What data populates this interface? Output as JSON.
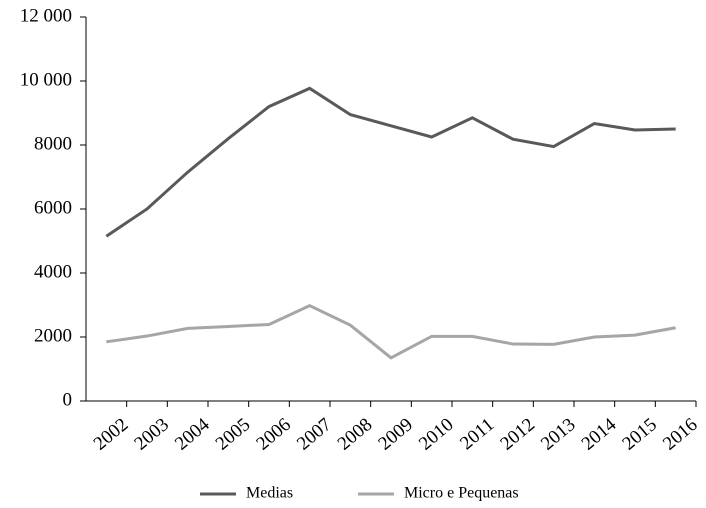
{
  "chart_data": {
    "type": "line",
    "categories": [
      "2002",
      "2003",
      "2004",
      "2005",
      "2006",
      "2007",
      "2008",
      "2009",
      "2010",
      "2011",
      "2012",
      "2013",
      "2014",
      "2015",
      "2016"
    ],
    "series": [
      {
        "name": "Medias",
        "color": "#595959",
        "values": [
          5150,
          6000,
          7150,
          8200,
          9200,
          9770,
          8950,
          8600,
          8250,
          8850,
          8180,
          7950,
          8670,
          8470,
          8500
        ]
      },
      {
        "name": "Micro e Pequenas",
        "color": "#a6a6a6",
        "values": [
          1850,
          2030,
          2270,
          2330,
          2390,
          2980,
          2370,
          1350,
          2020,
          2020,
          1780,
          1770,
          2000,
          2060,
          2290
        ]
      }
    ],
    "ylim": [
      0,
      12000
    ],
    "yticks": [
      0,
      2000,
      4000,
      6000,
      8000,
      {
        "value": 10000,
        "label": "10 000"
      },
      {
        "value": 12000,
        "label": "12 000"
      }
    ],
    "legend": "bottom"
  }
}
